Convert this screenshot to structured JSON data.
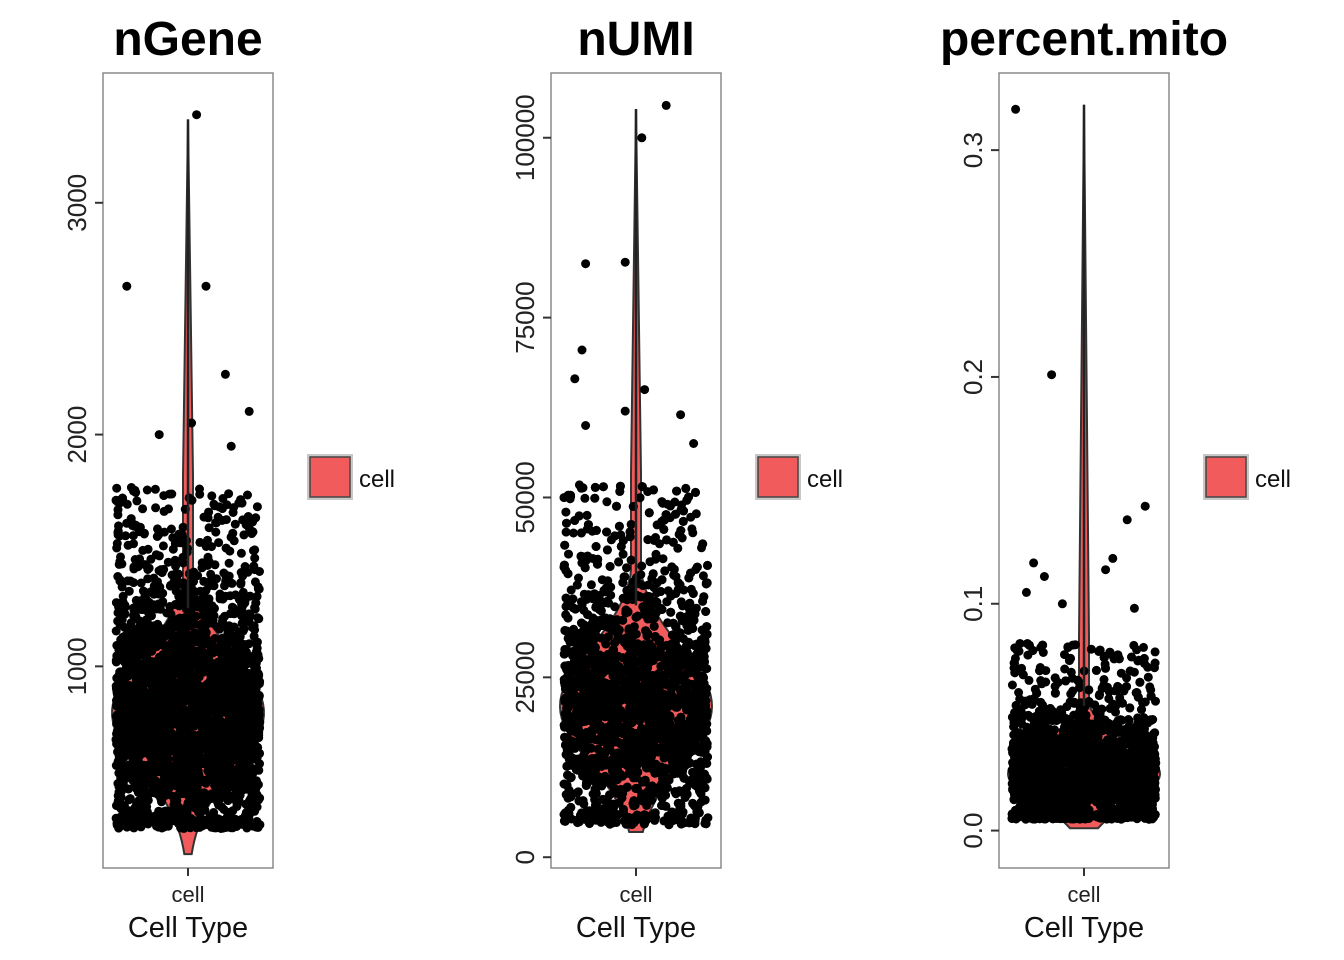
{
  "chart_data": [
    {
      "type": "violin-jitter",
      "title": "nGene",
      "xlabel": "Cell Type",
      "ylabel": "",
      "categories": [
        "cell"
      ],
      "ylim": [
        130,
        3560
      ],
      "yticks": [
        1000,
        2000,
        3000
      ],
      "legend": {
        "label": "cell",
        "color": "#F25B5B",
        "placement": "right"
      },
      "grid": false,
      "distribution": {
        "median": 800,
        "core_low": 300,
        "core_high": 1250,
        "min": 190,
        "max": 3360,
        "n_points": 2700
      },
      "outliers": [
        [
          -0.85,
          2640
        ],
        [
          0.12,
          3380
        ],
        [
          0.25,
          2640
        ],
        [
          0.52,
          2260
        ],
        [
          0.85,
          2100
        ],
        [
          0.6,
          1950
        ],
        [
          -0.4,
          2000
        ],
        [
          0.05,
          2050
        ]
      ]
    },
    {
      "type": "violin-jitter",
      "title": "nUMI",
      "xlabel": "Cell Type",
      "ylabel": "",
      "categories": [
        "cell"
      ],
      "ylim": [
        -1500,
        109000
      ],
      "yticks": [
        0,
        25000,
        50000,
        75000,
        100000
      ],
      "legend": {
        "label": "cell",
        "color": "#F25B5B",
        "placement": "right"
      },
      "grid": false,
      "distribution": {
        "median": 21000,
        "core_low": 4500,
        "core_high": 35000,
        "min": 3500,
        "max": 104000,
        "n_points": 2700
      },
      "outliers": [
        [
          0.42,
          104500
        ],
        [
          0.08,
          100000
        ],
        [
          -0.7,
          82500
        ],
        [
          -0.15,
          82700
        ],
        [
          -0.75,
          70500
        ],
        [
          -0.85,
          66500
        ],
        [
          0.12,
          65000
        ],
        [
          -0.15,
          62000
        ],
        [
          0.62,
          61500
        ],
        [
          -0.7,
          60000
        ],
        [
          0.8,
          57500
        ]
      ]
    },
    {
      "type": "violin-jitter",
      "title": "percent.mito",
      "xlabel": "Cell Type",
      "ylabel": "",
      "categories": [
        "cell"
      ],
      "ylim": [
        -0.0165,
        0.334
      ],
      "yticks": [
        0.0,
        0.1,
        0.2,
        0.3
      ],
      "legend": {
        "label": "cell",
        "color": "#F25B5B",
        "placement": "right"
      },
      "grid": false,
      "distribution": {
        "median": 0.025,
        "core_low": 0.005,
        "core_high": 0.055,
        "min": 0.001,
        "max": 0.32,
        "n_points": 2400
      },
      "outliers": [
        [
          -0.95,
          0.318
        ],
        [
          -0.45,
          0.201
        ],
        [
          0.6,
          0.137
        ],
        [
          0.85,
          0.143
        ],
        [
          -0.7,
          0.118
        ],
        [
          -0.55,
          0.112
        ],
        [
          0.4,
          0.12
        ],
        [
          -0.3,
          0.1
        ],
        [
          0.3,
          0.115
        ],
        [
          0.7,
          0.098
        ],
        [
          -0.8,
          0.105
        ]
      ]
    }
  ]
}
